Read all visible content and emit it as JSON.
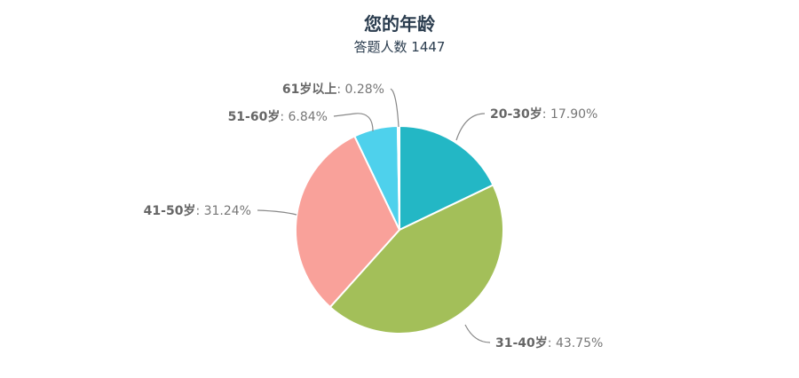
{
  "chart_data": {
    "type": "pie",
    "title": "您的年龄",
    "subtitle": "答题人数 1447",
    "slices": [
      {
        "label": "20-30岁",
        "value": 17.9,
        "display": "17.90%",
        "color": "#23b7c5"
      },
      {
        "label": "31-40岁",
        "value": 43.75,
        "display": "43.75%",
        "color": "#a3bf59"
      },
      {
        "label": "41-50岁",
        "value": 31.24,
        "display": "31.24%",
        "color": "#f9a19a"
      },
      {
        "label": "51-60岁",
        "value": 6.84,
        "display": "6.84%",
        "color": "#4ed1ec"
      },
      {
        "label": "61岁以上",
        "value": 0.28,
        "display": "0.28%",
        "color": "#ffffff"
      }
    ],
    "legend": "none"
  },
  "colors": {
    "title": "#2b3d4f",
    "label_name": "#666666",
    "label_value": "#777777",
    "connector": "#888888",
    "slice_border": "#ffffff"
  }
}
